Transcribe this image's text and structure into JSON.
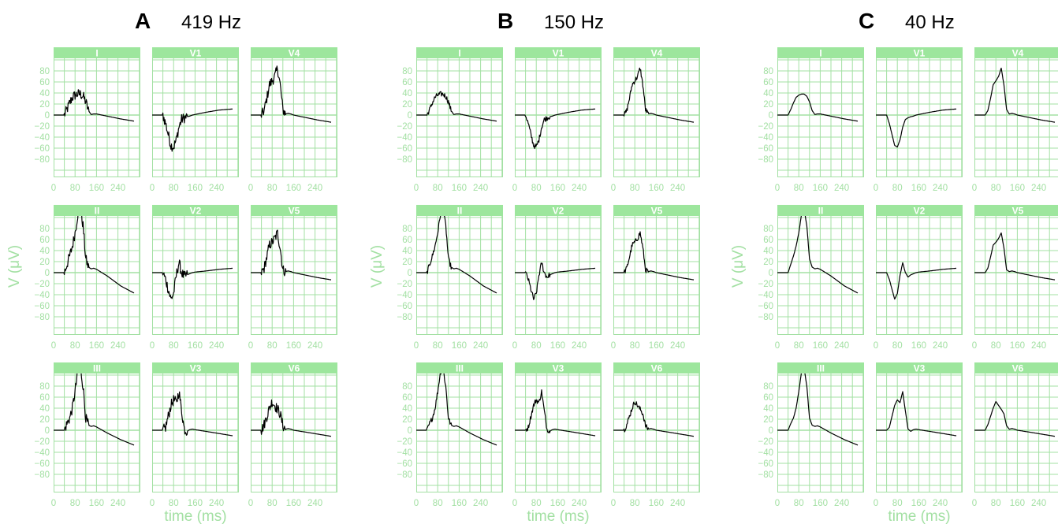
{
  "colors": {
    "grid": "#a3e0a3",
    "header": "#9de69d",
    "trace": "#000000",
    "axis_text": "#a3e0a3"
  },
  "chart_data": {
    "type": "line",
    "layout": "3 panels, each a 3x3 grid of ECG leads",
    "panels": [
      {
        "label": "A",
        "frequency": "419 Hz"
      },
      {
        "label": "B",
        "frequency": "150 Hz"
      },
      {
        "label": "C",
        "frequency": "40 Hz"
      }
    ],
    "lead_grid": [
      [
        "I",
        "V1",
        "V4"
      ],
      [
        "II",
        "V2",
        "V5"
      ],
      [
        "III",
        "V3",
        "V6"
      ]
    ],
    "xlabel": "time (ms)",
    "ylabel": "V (μV)",
    "x_ticks": [
      0,
      80,
      160,
      240
    ],
    "y_ticks": [
      80,
      60,
      40,
      20,
      0,
      -20,
      -40,
      -60,
      -80
    ],
    "xlim": [
      0,
      300
    ],
    "ylim": [
      -100,
      100
    ],
    "grid": true,
    "leads": {
      "I": {
        "x": [
          0,
          40,
          50,
          60,
          70,
          80,
          90,
          100,
          110,
          120,
          130,
          140,
          150,
          160,
          200,
          250,
          300
        ],
        "y": [
          0,
          0,
          10,
          22,
          32,
          36,
          38,
          38,
          34,
          24,
          8,
          1,
          2,
          2,
          -2,
          -7,
          -11
        ]
      },
      "II": {
        "x": [
          0,
          40,
          50,
          60,
          70,
          80,
          90,
          100,
          110,
          120,
          130,
          140,
          150,
          160,
          200,
          250,
          300
        ],
        "y": [
          0,
          0,
          15,
          30,
          48,
          72,
          105,
          115,
          85,
          25,
          10,
          7,
          8,
          6,
          -6,
          -24,
          -37
        ]
      },
      "III": {
        "x": [
          0,
          40,
          50,
          60,
          70,
          80,
          90,
          100,
          110,
          120,
          130,
          140,
          150,
          160,
          200,
          250,
          300
        ],
        "y": [
          0,
          0,
          12,
          22,
          40,
          70,
          105,
          112,
          80,
          22,
          9,
          7,
          8,
          6,
          -5,
          -17,
          -27
        ]
      },
      "V1": {
        "x": [
          0,
          40,
          50,
          60,
          70,
          80,
          90,
          100,
          110,
          120,
          130,
          140,
          150,
          160,
          200,
          250,
          300
        ],
        "y": [
          0,
          0,
          -15,
          -35,
          -55,
          -58,
          -45,
          -22,
          -8,
          -5,
          -3,
          -2,
          0,
          1,
          5,
          9,
          11
        ]
      },
      "V2": {
        "x": [
          0,
          40,
          50,
          60,
          70,
          80,
          90,
          100,
          110,
          120,
          130,
          140,
          150,
          160,
          200,
          250,
          300
        ],
        "y": [
          0,
          0,
          -12,
          -30,
          -48,
          -38,
          -5,
          18,
          0,
          -8,
          -4,
          -2,
          0,
          1,
          3,
          6,
          8
        ]
      },
      "V3": {
        "x": [
          0,
          40,
          50,
          60,
          70,
          80,
          90,
          100,
          110,
          120,
          130,
          140,
          150,
          160,
          200,
          250,
          300
        ],
        "y": [
          0,
          0,
          5,
          25,
          45,
          55,
          50,
          70,
          35,
          2,
          -2,
          1,
          2,
          1,
          -2,
          -6,
          -10
        ]
      },
      "V4": {
        "x": [
          0,
          40,
          50,
          60,
          70,
          80,
          90,
          100,
          110,
          120,
          130,
          140,
          150,
          160,
          200,
          250,
          300
        ],
        "y": [
          0,
          0,
          8,
          30,
          55,
          62,
          70,
          85,
          55,
          10,
          2,
          3,
          2,
          0,
          -4,
          -9,
          -13
        ]
      },
      "V5": {
        "x": [
          0,
          40,
          50,
          60,
          70,
          80,
          90,
          100,
          110,
          120,
          130,
          140,
          150,
          160,
          200,
          250,
          300
        ],
        "y": [
          0,
          0,
          8,
          28,
          50,
          55,
          62,
          72,
          45,
          5,
          2,
          3,
          2,
          0,
          -4,
          -9,
          -13
        ]
      },
      "V6": {
        "x": [
          0,
          40,
          50,
          60,
          70,
          80,
          90,
          100,
          110,
          120,
          130,
          140,
          150,
          160,
          200,
          250,
          300
        ],
        "y": [
          0,
          0,
          10,
          25,
          40,
          52,
          45,
          38,
          30,
          8,
          2,
          3,
          2,
          0,
          -3,
          -7,
          -11
        ]
      }
    },
    "noise_amplitude": {
      "A": 6,
      "B": 3,
      "C": 0
    }
  }
}
